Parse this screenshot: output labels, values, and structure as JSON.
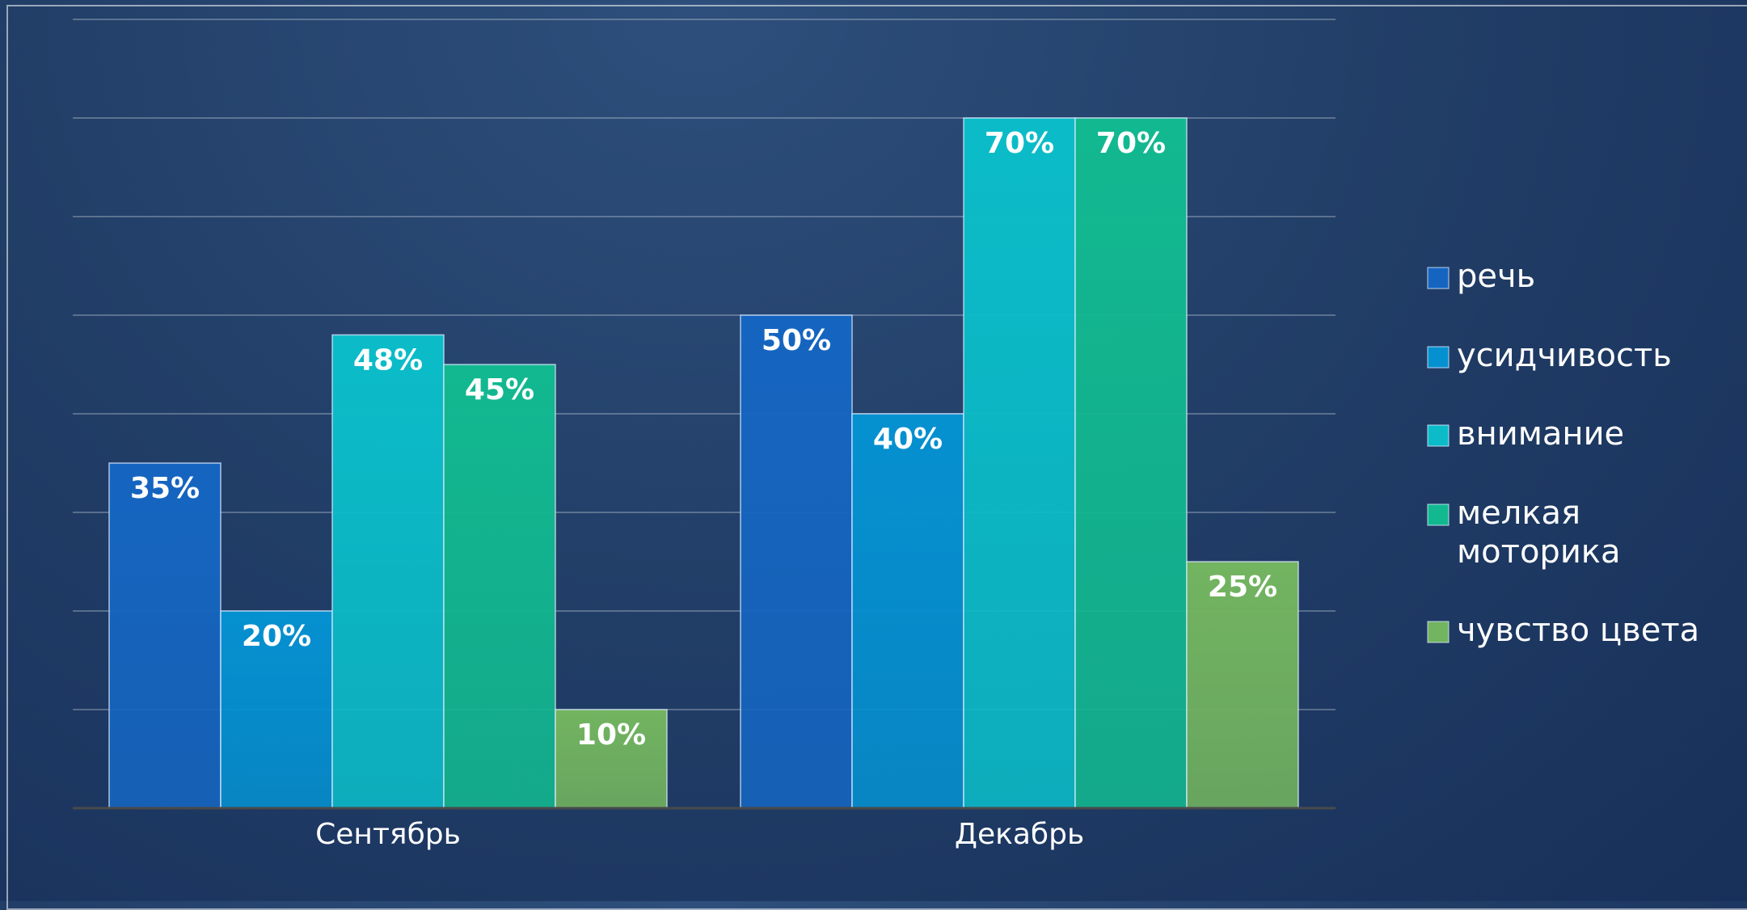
{
  "chart_data": {
    "type": "bar",
    "categories": [
      "Сентябрь",
      "Декабрь"
    ],
    "series": [
      {
        "name": "речь",
        "color": "#1565c0",
        "values": [
          35,
          50
        ],
        "labels": [
          "35%",
          "50%"
        ]
      },
      {
        "name": "усидчивость",
        "color": "#0590d0",
        "values": [
          20,
          40
        ],
        "labels": [
          "20%",
          "40%"
        ]
      },
      {
        "name": "внимание",
        "color": "#0bbcc8",
        "values": [
          48,
          70
        ],
        "labels": [
          "48%",
          "70%"
        ]
      },
      {
        "name": "мелкая моторика",
        "name_lines": [
          "мелкая",
          "моторика"
        ],
        "color": "#12b890",
        "values": [
          45,
          70
        ],
        "labels": [
          "45%",
          "70%"
        ]
      },
      {
        "name": "чувство цвета",
        "color": "#72b460",
        "values": [
          10,
          25
        ],
        "labels": [
          "10%",
          "25%"
        ]
      }
    ],
    "ylim": [
      0,
      80
    ],
    "y_gridlines": [
      10,
      20,
      30,
      40,
      50,
      60,
      70,
      80
    ],
    "y_tick_labels_visible": false,
    "grid": true,
    "legend_position": "right",
    "data_labels": "inside-top"
  }
}
